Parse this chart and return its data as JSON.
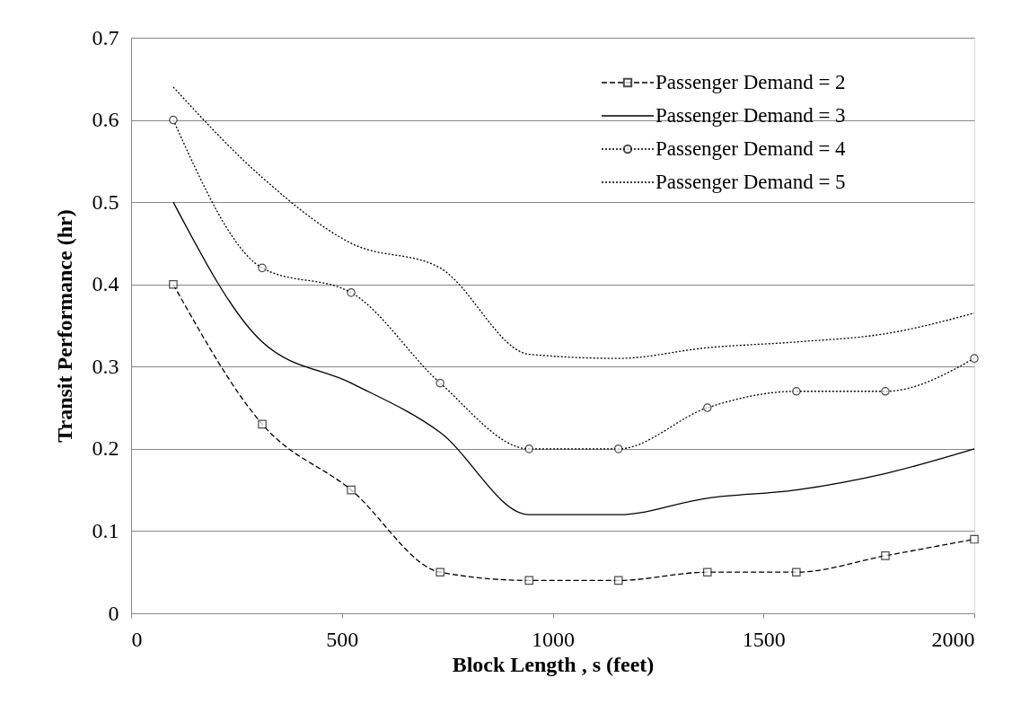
{
  "chart_data": {
    "type": "line",
    "xlabel": "Block Length , s (feet)",
    "ylabel": "Transit  Performance (hr)",
    "x": [
      100,
      311,
      522,
      733,
      944,
      1156,
      1367,
      1578,
      1789,
      2000
    ],
    "xlim": [
      0,
      2000
    ],
    "xticks": [
      0,
      500,
      1000,
      1500,
      2000
    ],
    "ylim": [
      0,
      0.7
    ],
    "yticks": [
      0,
      0.1,
      0.2,
      0.3,
      0.4,
      0.5,
      0.6,
      0.7
    ],
    "grid": "y",
    "legend": "top right",
    "series": [
      {
        "name": "Passenger Demand = 2",
        "color": "#000000",
        "line_style": "dashed",
        "marker": "square",
        "values": [
          0.4,
          0.23,
          0.15,
          0.05,
          0.04,
          0.04,
          0.05,
          0.05,
          0.07,
          0.09
        ]
      },
      {
        "name": "Passenger Demand = 3",
        "color": "#000000",
        "line_style": "solid",
        "marker": "none",
        "values": [
          0.5,
          0.33,
          0.28,
          0.22,
          0.12,
          0.12,
          0.14,
          0.15,
          0.17,
          0.2
        ]
      },
      {
        "name": "Passenger Demand = 4",
        "color": "#000000",
        "line_style": "dotted",
        "marker": "circle",
        "values": [
          0.6,
          0.42,
          0.39,
          0.28,
          0.2,
          0.2,
          0.25,
          0.27,
          0.27,
          0.31
        ]
      },
      {
        "name": "Passenger Demand = 5",
        "color": "#000000",
        "line_style": "dotted",
        "marker": "none",
        "values": [
          0.64,
          0.53,
          0.45,
          0.42,
          0.315,
          0.31,
          0.323,
          0.33,
          0.34,
          0.365
        ]
      }
    ]
  }
}
